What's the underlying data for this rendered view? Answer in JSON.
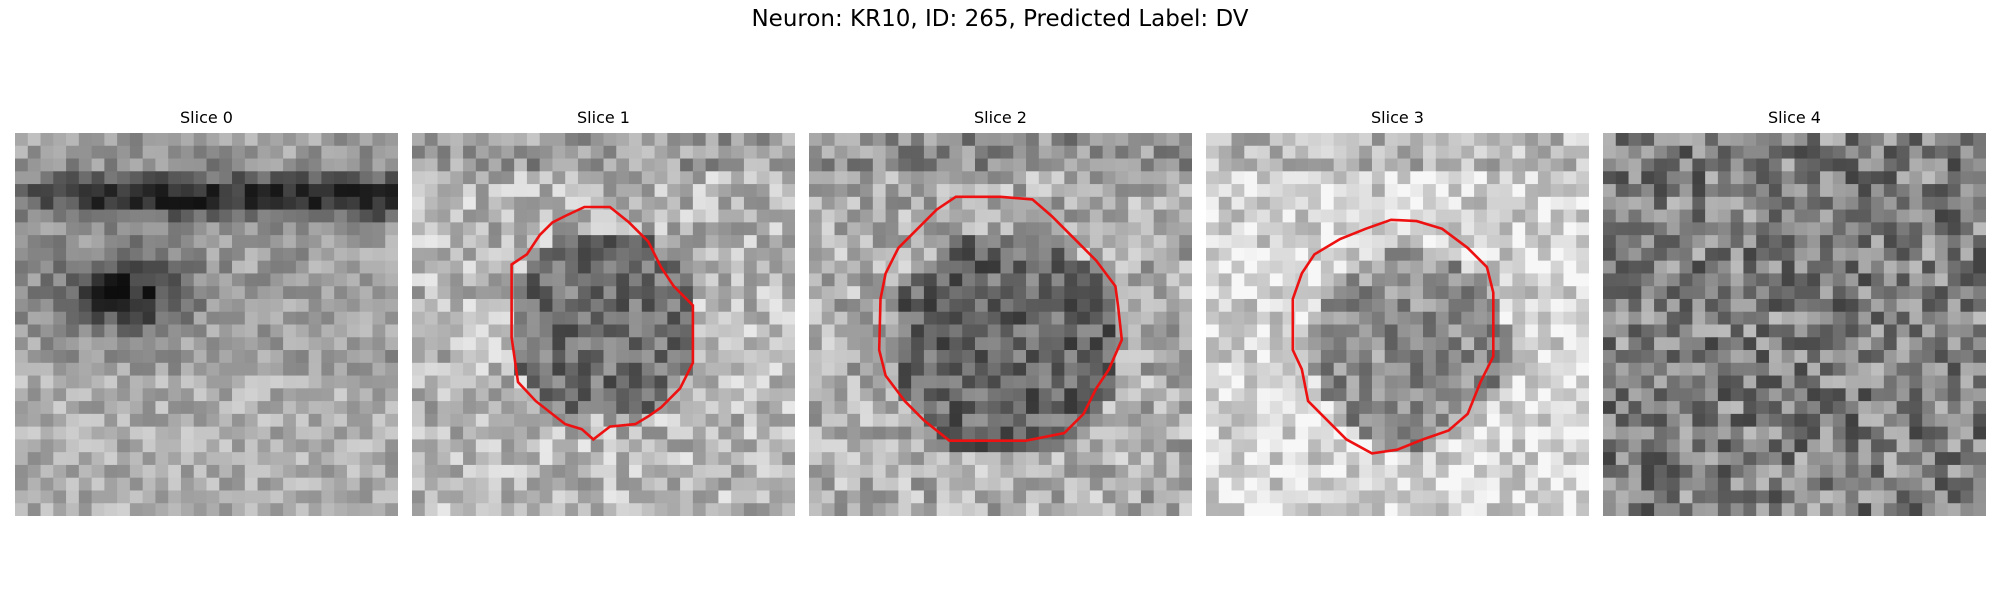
{
  "figure": {
    "title": "Neuron: KR10, ID: 265, Predicted Label: DV"
  },
  "panels": [
    {
      "title": "Slice 0",
      "has_contour": false
    },
    {
      "title": "Slice 1",
      "has_contour": true
    },
    {
      "title": "Slice 2",
      "has_contour": true
    },
    {
      "title": "Slice 3",
      "has_contour": true
    },
    {
      "title": "Slice 4",
      "has_contour": false
    }
  ],
  "colors": {
    "contour": "#ee1111",
    "background": "#ffffff"
  },
  "image": {
    "type": "grayscale-pixel-grid"
  }
}
